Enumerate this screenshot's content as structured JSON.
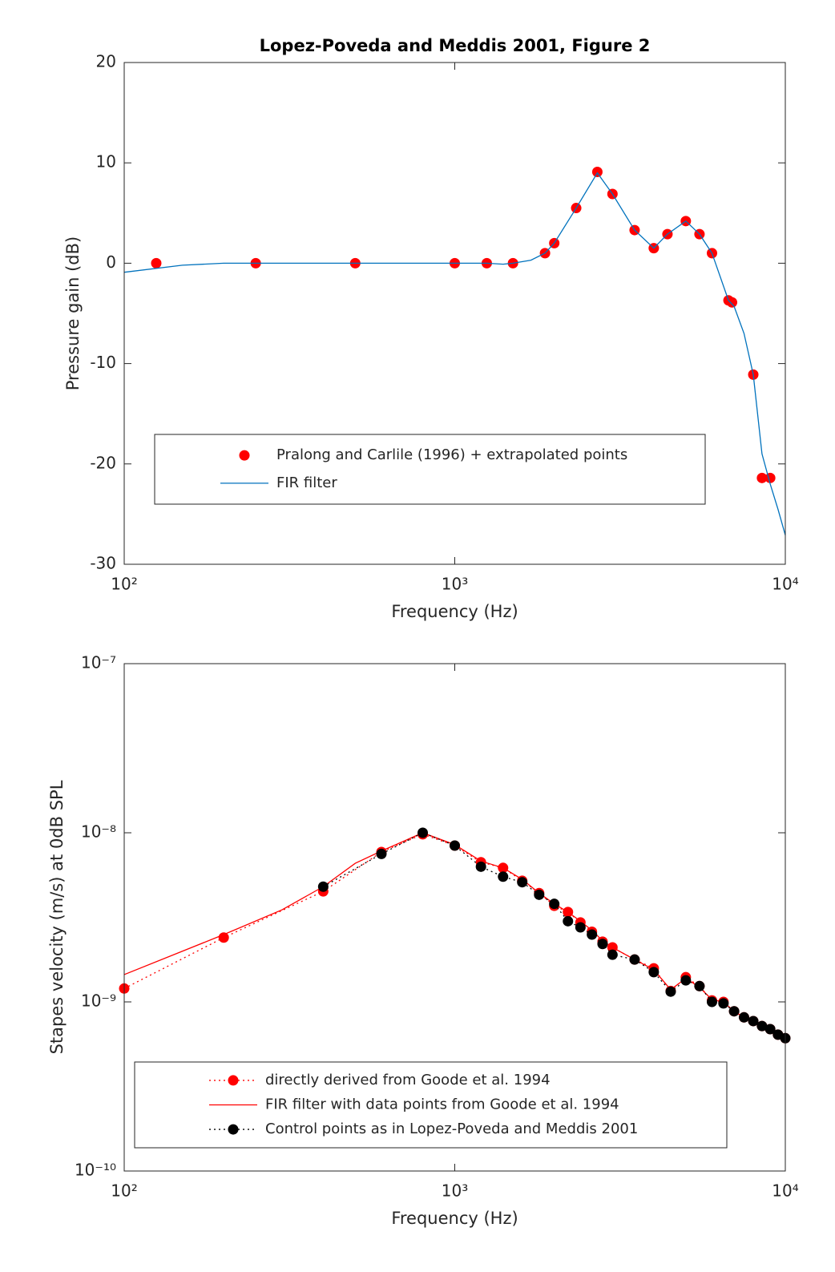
{
  "chart_data": [
    {
      "type": "line",
      "title": "Lopez-Poveda and Meddis 2001, Figure 2",
      "x_label": "Frequency (Hz)",
      "y_label": "Pressure gain (dB)",
      "xlog": true,
      "ylog": false,
      "xlim": [
        100,
        10000
      ],
      "ylim": [
        -30,
        20
      ],
      "xticks": [
        {
          "value": 100,
          "label": "10²"
        },
        {
          "value": 1000,
          "label": "10³"
        },
        {
          "value": 10000,
          "label": "10⁴"
        }
      ],
      "yticks": [
        -30,
        -20,
        -10,
        0,
        10,
        20
      ],
      "series": [
        {
          "name": "Pralong and Carlile (1996) + extrapolated points",
          "color": "#ff0000",
          "line_style": "none",
          "marker": "o",
          "x": [
            125,
            250,
            500,
            1000,
            1250,
            1500,
            1875,
            2000,
            2330,
            2700,
            3000,
            3500,
            4000,
            4400,
            5000,
            5500,
            6000,
            6730,
            6900,
            8000,
            8500,
            9000
          ],
          "values": [
            0,
            0,
            0,
            0,
            0,
            0,
            1.0,
            2.0,
            5.5,
            9.1,
            6.9,
            3.3,
            1.5,
            2.9,
            4.2,
            2.9,
            1.0,
            -3.7,
            -3.9,
            -11.1,
            -21.4,
            -21.4
          ]
        },
        {
          "name": "FIR filter",
          "color": "#0072bd",
          "line_style": "solid",
          "marker": "none",
          "x": [
            100,
            150,
            200,
            300,
            500,
            1000,
            1250,
            1400,
            1500,
            1700,
            1875,
            2000,
            2330,
            2700,
            3000,
            3500,
            4000,
            4400,
            5000,
            5500,
            6000,
            6730,
            7000,
            7500,
            8000,
            8500,
            9000,
            9500,
            10000
          ],
          "values": [
            -0.9,
            -0.2,
            0,
            0,
            0,
            0,
            0,
            -0.1,
            0,
            0.3,
            1.0,
            2.0,
            5.5,
            9.0,
            6.9,
            3.3,
            1.5,
            2.9,
            4.2,
            2.9,
            1.0,
            -3.7,
            -4.3,
            -7,
            -11.1,
            -19,
            -22,
            -24.5,
            -27.1
          ]
        }
      ]
    },
    {
      "type": "line",
      "x_label": "Frequency (Hz)",
      "y_label": "Stapes velocity (m/s) at 0dB SPL",
      "xlog": true,
      "ylog": true,
      "xlim": [
        100,
        10000
      ],
      "ylim": [
        1e-10,
        1e-07
      ],
      "xticks": [
        {
          "value": 100,
          "label": "10²"
        },
        {
          "value": 1000,
          "label": "10³"
        },
        {
          "value": 10000,
          "label": "10⁴"
        }
      ],
      "yticks": [
        {
          "value": 1e-10,
          "label": "10⁻¹⁰"
        },
        {
          "value": 1e-09,
          "label": "10⁻⁹"
        },
        {
          "value": 1e-08,
          "label": "10⁻⁸"
        },
        {
          "value": 1e-07,
          "label": "10⁻⁷"
        }
      ],
      "series": [
        {
          "name": "directly derived from Goode et al. 1994",
          "color": "#ff0000",
          "line_style": "dotted",
          "marker": "o",
          "x": [
            100,
            200,
            400,
            600,
            800,
            1000,
            1200,
            1400,
            1600,
            1800,
            2000,
            2200,
            2400,
            2600,
            2800,
            3000,
            3500,
            4000,
            4500,
            5000,
            5500,
            6000,
            6500,
            7000,
            7500,
            8000,
            8500,
            9000,
            9500,
            10000
          ],
          "values": [
            1.2e-09,
            2.4e-09,
            4.5e-09,
            7.7e-09,
            9.8e-09,
            8.4e-09,
            6.7e-09,
            6.2e-09,
            5.2e-09,
            4.4e-09,
            3.7e-09,
            3.4e-09,
            2.95e-09,
            2.6e-09,
            2.27e-09,
            2.1e-09,
            1.78e-09,
            1.58e-09,
            1.16e-09,
            1.4e-09,
            1.24e-09,
            1.02e-09,
            1e-09,
            8.8e-10,
            8.1e-10,
            7.7e-10,
            7.2e-10,
            6.9e-10,
            6.4e-10,
            6.1e-10
          ]
        },
        {
          "name": "FIR filter with data points from Goode et al. 1994",
          "color": "#ff0000",
          "line_style": "solid",
          "marker": "none",
          "x": [
            100,
            200,
            300,
            400,
            500,
            600,
            800,
            1000,
            1200,
            1400,
            1600,
            1800,
            2000,
            2200,
            2400,
            2600,
            2800,
            3000,
            3500,
            4000,
            4500,
            5000,
            5500,
            6000,
            6500,
            7000,
            7500,
            8000,
            8500,
            9000,
            9500,
            10000
          ],
          "values": [
            1.45e-09,
            2.5e-09,
            3.5e-09,
            4.8e-09,
            6.6e-09,
            7.8e-09,
            1e-08,
            8.5e-09,
            6.8e-09,
            6.2e-09,
            5.3e-09,
            4.4e-09,
            3.8e-09,
            3.4e-09,
            3e-09,
            2.65e-09,
            2.3e-09,
            2.1e-09,
            1.78e-09,
            1.55e-09,
            1.18e-09,
            1.38e-09,
            1.22e-09,
            1.03e-09,
            1e-09,
            8.8e-10,
            8.1e-10,
            7.7e-10,
            7.2e-10,
            6.9e-10,
            6.4e-10,
            6.1e-10
          ]
        },
        {
          "name": "Control points as in Lopez-Poveda and Meddis 2001",
          "color": "#000000",
          "line_style": "dotted",
          "marker": "o",
          "x": [
            400,
            600,
            800,
            1000,
            1200,
            1400,
            1600,
            1800,
            2000,
            2200,
            2400,
            2600,
            2800,
            3000,
            3500,
            4000,
            4500,
            5000,
            5500,
            6000,
            6500,
            7000,
            7500,
            8000,
            8500,
            9000,
            9500,
            10000
          ],
          "values": [
            4.8e-09,
            7.5e-09,
            1e-08,
            8.4e-09,
            6.3e-09,
            5.5e-09,
            5.1e-09,
            4.3e-09,
            3.8e-09,
            3e-09,
            2.76e-09,
            2.5e-09,
            2.2e-09,
            1.9e-09,
            1.78e-09,
            1.5e-09,
            1.15e-09,
            1.34e-09,
            1.24e-09,
            1e-09,
            9.8e-10,
            8.8e-10,
            8.1e-10,
            7.7e-10,
            7.2e-10,
            6.9e-10,
            6.4e-10,
            6.1e-10
          ]
        }
      ]
    }
  ]
}
